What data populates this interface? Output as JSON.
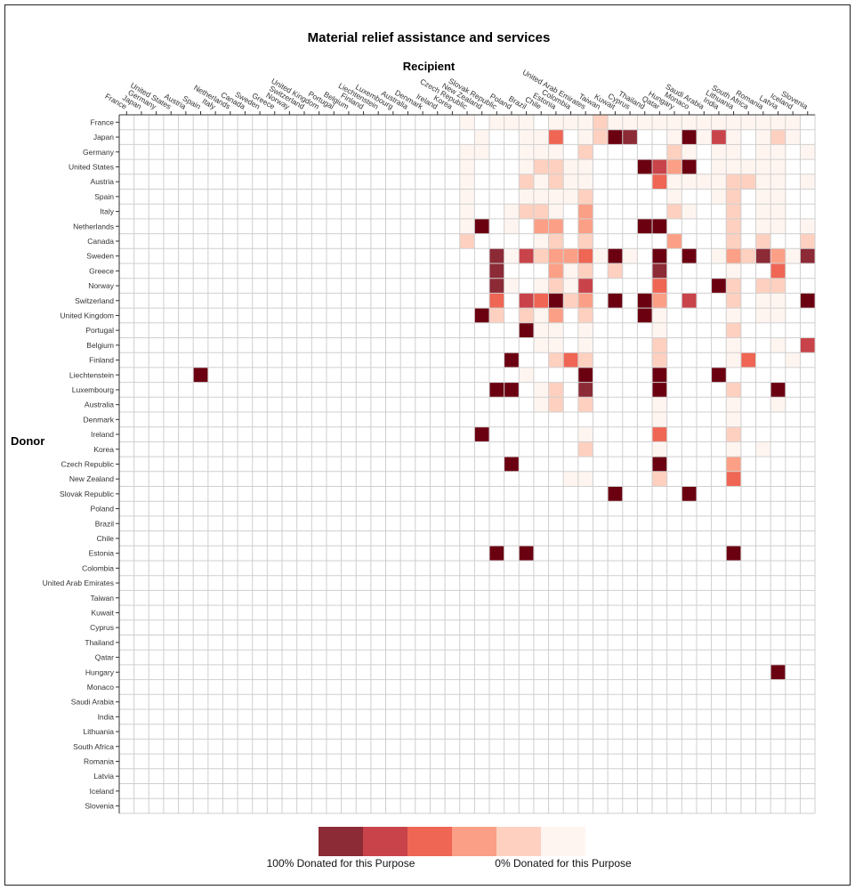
{
  "chart_data": {
    "type": "heatmap",
    "title": "Material relief assistance and services",
    "xlabel": "Recipient",
    "ylabel": "Donor",
    "x": [
      "France",
      "Japan",
      "Germany",
      "United States",
      "Austria",
      "Spain",
      "Italy",
      "Netherlands",
      "Canada",
      "Sweden",
      "Greece",
      "Norway",
      "Switzerland",
      "United Kingdom",
      "Portugal",
      "Belgium",
      "Finland",
      "Liechtenstein",
      "Luxembourg",
      "Australia",
      "Denmark",
      "Ireland",
      "Korea",
      "Czech Republic",
      "New Zealand",
      "Slovak Republic",
      "Poland",
      "Brazil",
      "Chile",
      "Estonia",
      "Colombia",
      "United Arab Emirates",
      "Taiwan",
      "Kuwait",
      "Cyprus",
      "Thailand",
      "Qatar",
      "Hungary",
      "Monaco",
      "Saudi Arabia",
      "India",
      "Lithuania",
      "South Africa",
      "Romania",
      "Latvia",
      "Iceland",
      "Slovenia"
    ],
    "y": [
      "France",
      "Japan",
      "Germany",
      "United States",
      "Austria",
      "Spain",
      "Italy",
      "Netherlands",
      "Canada",
      "Sweden",
      "Greece",
      "Norway",
      "Switzerland",
      "United Kingdom",
      "Portugal",
      "Belgium",
      "Finland",
      "Liechtenstein",
      "Luxembourg",
      "Australia",
      "Denmark",
      "Ireland",
      "Korea",
      "Czech Republic",
      "New Zealand",
      "Slovak Republic",
      "Poland",
      "Brazil",
      "Chile",
      "Estonia",
      "Colombia",
      "United Arab Emirates",
      "Taiwan",
      "Kuwait",
      "Cyprus",
      "Thailand",
      "Qatar",
      "Hungary",
      "Monaco",
      "Saudi Arabia",
      "India",
      "Lithuania",
      "South Africa",
      "Romania",
      "Latvia",
      "Iceland",
      "Slovenia"
    ],
    "cells": [
      [
        "France",
        "Czech Republic",
        0.05
      ],
      [
        "France",
        "Slovak Republic",
        0.05
      ],
      [
        "France",
        "Poland",
        0.05
      ],
      [
        "France",
        "Brazil",
        0.05
      ],
      [
        "France",
        "Estonia",
        0.05
      ],
      [
        "France",
        "Colombia",
        0.05
      ],
      [
        "France",
        "United Arab Emirates",
        0.05
      ],
      [
        "France",
        "Taiwan",
        0.3
      ],
      [
        "France",
        "Kuwait",
        0.05
      ],
      [
        "France",
        "Cyprus",
        0.05
      ],
      [
        "France",
        "Thailand",
        0.05
      ],
      [
        "France",
        "Qatar",
        0.1
      ],
      [
        "France",
        "Hungary",
        0.05
      ],
      [
        "France",
        "Monaco",
        0.05
      ],
      [
        "France",
        "Saudi Arabia",
        0.05
      ],
      [
        "France",
        "India",
        0.05
      ],
      [
        "France",
        "Lithuania",
        0.05
      ],
      [
        "France",
        "South Africa",
        0.05
      ],
      [
        "France",
        "Romania",
        0.05
      ],
      [
        "France",
        "Latvia",
        0.05
      ],
      [
        "France",
        "Iceland",
        0.05
      ],
      [
        "Japan",
        "New Zealand",
        0.05
      ],
      [
        "Japan",
        "Brazil",
        0.05
      ],
      [
        "Japan",
        "Chile",
        0.1
      ],
      [
        "Japan",
        "Estonia",
        0.6
      ],
      [
        "Japan",
        "United Arab Emirates",
        0.1
      ],
      [
        "Japan",
        "Taiwan",
        0.3
      ],
      [
        "Japan",
        "Kuwait",
        1.0
      ],
      [
        "Japan",
        "Cyprus",
        0.9
      ],
      [
        "Japan",
        "Hungary",
        0.1
      ],
      [
        "Japan",
        "Monaco",
        1.0
      ],
      [
        "Japan",
        "Saudi Arabia",
        0.05
      ],
      [
        "Japan",
        "India",
        0.8
      ],
      [
        "Japan",
        "Lithuania",
        0.1
      ],
      [
        "Japan",
        "Romania",
        0.1
      ],
      [
        "Japan",
        "Latvia",
        0.15
      ],
      [
        "Japan",
        "Iceland",
        0.05
      ],
      [
        "Germany",
        "New Zealand",
        0.05
      ],
      [
        "Germany",
        "Czech Republic",
        0.1
      ],
      [
        "Germany",
        "Brazil",
        0.1
      ],
      [
        "Germany",
        "Chile",
        0.1
      ],
      [
        "Germany",
        "Estonia",
        0.05
      ],
      [
        "Germany",
        "United Arab Emirates",
        0.15
      ],
      [
        "Germany",
        "Hungary",
        0.3
      ],
      [
        "Germany",
        "Monaco",
        0.05
      ],
      [
        "Germany",
        "India",
        0.05
      ],
      [
        "Germany",
        "Lithuania",
        0.05
      ],
      [
        "Germany",
        "Romania",
        0.1
      ],
      [
        "Germany",
        "Latvia",
        0.1
      ],
      [
        "Germany",
        "Slovenia",
        0.05
      ],
      [
        "United States",
        "Czech Republic",
        0.05
      ],
      [
        "United States",
        "Brazil",
        0.1
      ],
      [
        "United States",
        "Chile",
        0.2
      ],
      [
        "United States",
        "Estonia",
        0.15
      ],
      [
        "United States",
        "Colombia",
        0.05
      ],
      [
        "United States",
        "United Arab Emirates",
        0.05
      ],
      [
        "United States",
        "Thailand",
        1.0
      ],
      [
        "United States",
        "Qatar",
        0.8
      ],
      [
        "United States",
        "Hungary",
        0.45
      ],
      [
        "United States",
        "Monaco",
        1.0
      ],
      [
        "United States",
        "India",
        0.1
      ],
      [
        "United States",
        "Lithuania",
        0.05
      ],
      [
        "United States",
        "South Africa",
        0.05
      ],
      [
        "United States",
        "Romania",
        0.1
      ],
      [
        "United States",
        "Latvia",
        0.1
      ],
      [
        "Austria",
        "Czech Republic",
        0.05
      ],
      [
        "Austria",
        "Brazil",
        0.2
      ],
      [
        "Austria",
        "Chile",
        0.1
      ],
      [
        "Austria",
        "Estonia",
        0.15
      ],
      [
        "Austria",
        "Colombia",
        0.05
      ],
      [
        "Austria",
        "United Arab Emirates",
        0.1
      ],
      [
        "Austria",
        "Qatar",
        0.55
      ],
      [
        "Austria",
        "Hungary",
        0.1
      ],
      [
        "Austria",
        "Monaco",
        0.05
      ],
      [
        "Austria",
        "Saudi Arabia",
        0.05
      ],
      [
        "Austria",
        "India",
        0.1
      ],
      [
        "Austria",
        "Lithuania",
        0.2
      ],
      [
        "Austria",
        "South Africa",
        0.25
      ],
      [
        "Austria",
        "Romania",
        0.1
      ],
      [
        "Austria",
        "Latvia",
        0.1
      ],
      [
        "Austria",
        "Slovenia",
        0.05
      ],
      [
        "Spain",
        "Czech Republic",
        0.05
      ],
      [
        "Spain",
        "Brazil",
        0.1
      ],
      [
        "Spain",
        "Chile",
        0.1
      ],
      [
        "Spain",
        "Estonia",
        0.1
      ],
      [
        "Spain",
        "Colombia",
        0.05
      ],
      [
        "Spain",
        "United Arab Emirates",
        0.15
      ],
      [
        "Spain",
        "Hungary",
        0.05
      ],
      [
        "Spain",
        "India",
        0.05
      ],
      [
        "Spain",
        "Lithuania",
        0.2
      ],
      [
        "Spain",
        "Romania",
        0.1
      ],
      [
        "Spain",
        "Latvia",
        0.1
      ],
      [
        "Italy",
        "Czech Republic",
        0.05
      ],
      [
        "Italy",
        "Poland",
        0.05
      ],
      [
        "Italy",
        "Brazil",
        0.2
      ],
      [
        "Italy",
        "Chile",
        0.15
      ],
      [
        "Italy",
        "Estonia",
        0.1
      ],
      [
        "Italy",
        "United Arab Emirates",
        0.4
      ],
      [
        "Italy",
        "Hungary",
        0.2
      ],
      [
        "Italy",
        "Monaco",
        0.05
      ],
      [
        "Italy",
        "Lithuania",
        0.25
      ],
      [
        "Italy",
        "Romania",
        0.1
      ],
      [
        "Italy",
        "Latvia",
        0.1
      ],
      [
        "Netherlands",
        "New Zealand",
        1.0
      ],
      [
        "Netherlands",
        "Czech Republic",
        0.05
      ],
      [
        "Netherlands",
        "Poland",
        0.1
      ],
      [
        "Netherlands",
        "Chile",
        0.5
      ],
      [
        "Netherlands",
        "Estonia",
        0.5
      ],
      [
        "Netherlands",
        "United Arab Emirates",
        0.5
      ],
      [
        "Netherlands",
        "Thailand",
        1.0
      ],
      [
        "Netherlands",
        "Qatar",
        1.0
      ],
      [
        "Netherlands",
        "Lithuania",
        0.15
      ],
      [
        "Netherlands",
        "Romania",
        0.1
      ],
      [
        "Netherlands",
        "Latvia",
        0.1
      ],
      [
        "Netherlands",
        "Slovenia",
        0.1
      ],
      [
        "Canada",
        "Czech Republic",
        0.25
      ],
      [
        "Canada",
        "Chile",
        0.1
      ],
      [
        "Canada",
        "Estonia",
        0.2
      ],
      [
        "Canada",
        "United Arab Emirates",
        0.3
      ],
      [
        "Canada",
        "Hungary",
        0.45
      ],
      [
        "Canada",
        "Lithuania",
        0.15
      ],
      [
        "Canada",
        "Romania",
        0.2
      ],
      [
        "Canada",
        "Slovenia",
        0.15
      ],
      [
        "Sweden",
        "Slovak Republic",
        0.9
      ],
      [
        "Sweden",
        "Poland",
        0.05
      ],
      [
        "Sweden",
        "Brazil",
        0.8
      ],
      [
        "Sweden",
        "Chile",
        0.3
      ],
      [
        "Sweden",
        "Estonia",
        0.5
      ],
      [
        "Sweden",
        "Colombia",
        0.5
      ],
      [
        "Sweden",
        "United Arab Emirates",
        0.6
      ],
      [
        "Sweden",
        "Taiwan",
        0.1
      ],
      [
        "Sweden",
        "Kuwait",
        1.0
      ],
      [
        "Sweden",
        "Cyprus",
        0.05
      ],
      [
        "Sweden",
        "Qatar",
        1.0
      ],
      [
        "Sweden",
        "Monaco",
        1.0
      ],
      [
        "Sweden",
        "India",
        0.05
      ],
      [
        "Sweden",
        "Lithuania",
        0.4
      ],
      [
        "Sweden",
        "South Africa",
        0.2
      ],
      [
        "Sweden",
        "Romania",
        0.9
      ],
      [
        "Sweden",
        "Latvia",
        0.5
      ],
      [
        "Sweden",
        "Iceland",
        0.05
      ],
      [
        "Sweden",
        "Slovenia",
        0.9
      ],
      [
        "Greece",
        "Slovak Republic",
        0.9
      ],
      [
        "Greece",
        "Estonia",
        0.45
      ],
      [
        "Greece",
        "Colombia",
        0.05
      ],
      [
        "Greece",
        "United Arab Emirates",
        0.15
      ],
      [
        "Greece",
        "Kuwait",
        0.3
      ],
      [
        "Greece",
        "Qatar",
        0.9
      ],
      [
        "Greece",
        "Lithuania",
        0.1
      ],
      [
        "Greece",
        "Latvia",
        0.6
      ],
      [
        "Norway",
        "Slovak Republic",
        0.9
      ],
      [
        "Norway",
        "Poland",
        0.05
      ],
      [
        "Norway",
        "Chile",
        0.1
      ],
      [
        "Norway",
        "Estonia",
        0.2
      ],
      [
        "Norway",
        "Colombia",
        0.1
      ],
      [
        "Norway",
        "United Arab Emirates",
        0.8
      ],
      [
        "Norway",
        "Qatar",
        0.6
      ],
      [
        "Norway",
        "India",
        1.0
      ],
      [
        "Norway",
        "Lithuania",
        0.2
      ],
      [
        "Norway",
        "Romania",
        0.25
      ],
      [
        "Norway",
        "Latvia",
        0.15
      ],
      [
        "Switzerland",
        "Slovak Republic",
        0.6
      ],
      [
        "Switzerland",
        "Brazil",
        0.8
      ],
      [
        "Switzerland",
        "Chile",
        0.6
      ],
      [
        "Switzerland",
        "Estonia",
        1.0
      ],
      [
        "Switzerland",
        "Colombia",
        0.2
      ],
      [
        "Switzerland",
        "United Arab Emirates",
        0.4
      ],
      [
        "Switzerland",
        "Kuwait",
        1.0
      ],
      [
        "Switzerland",
        "Thailand",
        1.0
      ],
      [
        "Switzerland",
        "Qatar",
        0.5
      ],
      [
        "Switzerland",
        "Monaco",
        0.8
      ],
      [
        "Switzerland",
        "Lithuania",
        0.2
      ],
      [
        "Switzerland",
        "Romania",
        0.1
      ],
      [
        "Switzerland",
        "Latvia",
        0.1
      ],
      [
        "Switzerland",
        "Slovenia",
        1.0
      ],
      [
        "United Kingdom",
        "New Zealand",
        1.0
      ],
      [
        "United Kingdom",
        "Slovak Republic",
        0.3
      ],
      [
        "United Kingdom",
        "Brazil",
        0.15
      ],
      [
        "United Kingdom",
        "Chile",
        0.1
      ],
      [
        "United Kingdom",
        "Estonia",
        0.5
      ],
      [
        "United Kingdom",
        "United Arab Emirates",
        0.3
      ],
      [
        "United Kingdom",
        "Thailand",
        1.0
      ],
      [
        "United Kingdom",
        "Qatar",
        0.1
      ],
      [
        "United Kingdom",
        "Lithuania",
        0.1
      ],
      [
        "United Kingdom",
        "Romania",
        0.1
      ],
      [
        "United Kingdom",
        "Latvia",
        0.1
      ],
      [
        "Portugal",
        "Brazil",
        1.0
      ],
      [
        "Portugal",
        "Chile",
        0.05
      ],
      [
        "Portugal",
        "Estonia",
        0.1
      ],
      [
        "Portugal",
        "United Arab Emirates",
        0.1
      ],
      [
        "Portugal",
        "Qatar",
        0.1
      ],
      [
        "Portugal",
        "Lithuania",
        0.25
      ],
      [
        "Belgium",
        "Chile",
        0.05
      ],
      [
        "Belgium",
        "Estonia",
        0.05
      ],
      [
        "Belgium",
        "United Arab Emirates",
        0.1
      ],
      [
        "Belgium",
        "Qatar",
        0.2
      ],
      [
        "Belgium",
        "Lithuania",
        0.05
      ],
      [
        "Belgium",
        "Latvia",
        0.05
      ],
      [
        "Belgium",
        "Slovenia",
        0.85
      ],
      [
        "Finland",
        "Poland",
        1.0
      ],
      [
        "Finland",
        "Estonia",
        0.3
      ],
      [
        "Finland",
        "Colombia",
        0.6
      ],
      [
        "Finland",
        "United Arab Emirates",
        0.2
      ],
      [
        "Finland",
        "Qatar",
        0.2
      ],
      [
        "Finland",
        "Lithuania",
        0.1
      ],
      [
        "Finland",
        "South Africa",
        0.55
      ],
      [
        "Finland",
        "Iceland",
        0.05
      ],
      [
        "Liechtenstein",
        "Spain",
        1.0
      ],
      [
        "Liechtenstein",
        "Brazil",
        0.05
      ],
      [
        "Liechtenstein",
        "United Arab Emirates",
        1.0
      ],
      [
        "Liechtenstein",
        "Qatar",
        1.0
      ],
      [
        "Liechtenstein",
        "India",
        1.0
      ],
      [
        "Luxembourg",
        "Slovak Republic",
        1.0
      ],
      [
        "Luxembourg",
        "Poland",
        1.0
      ],
      [
        "Luxembourg",
        "Chile",
        0.1
      ],
      [
        "Luxembourg",
        "Estonia",
        0.3
      ],
      [
        "Luxembourg",
        "United Arab Emirates",
        0.9
      ],
      [
        "Luxembourg",
        "Qatar",
        1.0
      ],
      [
        "Luxembourg",
        "Lithuania",
        0.25
      ],
      [
        "Luxembourg",
        "Latvia",
        1.0
      ],
      [
        "Australia",
        "Chile",
        0.1
      ],
      [
        "Australia",
        "Estonia",
        0.3
      ],
      [
        "Australia",
        "United Arab Emirates",
        0.2
      ],
      [
        "Australia",
        "Qatar",
        0.05
      ],
      [
        "Australia",
        "Lithuania",
        0.05
      ],
      [
        "Australia",
        "Latvia",
        0.05
      ],
      [
        "Denmark",
        "Qatar",
        0.05
      ],
      [
        "Denmark",
        "Lithuania",
        0.05
      ],
      [
        "Ireland",
        "New Zealand",
        1.0
      ],
      [
        "Ireland",
        "United Arab Emirates",
        0.05
      ],
      [
        "Ireland",
        "Qatar",
        0.6
      ],
      [
        "Ireland",
        "Lithuania",
        0.2
      ],
      [
        "Korea",
        "United Arab Emirates",
        0.15
      ],
      [
        "Korea",
        "Qatar",
        0.1
      ],
      [
        "Korea",
        "Lithuania",
        0.05
      ],
      [
        "Korea",
        "Romania",
        0.05
      ],
      [
        "Czech Republic",
        "Poland",
        1.0
      ],
      [
        "Czech Republic",
        "Qatar",
        1.0
      ],
      [
        "Czech Republic",
        "Lithuania",
        0.35
      ],
      [
        "New Zealand",
        "Colombia",
        0.1
      ],
      [
        "New Zealand",
        "United Arab Emirates",
        0.1
      ],
      [
        "New Zealand",
        "Qatar",
        0.2
      ],
      [
        "New Zealand",
        "Lithuania",
        0.6
      ],
      [
        "Slovak Republic",
        "Kuwait",
        1.0
      ],
      [
        "Slovak Republic",
        "Monaco",
        1.0
      ],
      [
        "Estonia",
        "Slovak Republic",
        1.0
      ],
      [
        "Estonia",
        "Brazil",
        1.0
      ],
      [
        "Estonia",
        "Lithuania",
        1.0
      ],
      [
        "Hungary",
        "Latvia",
        1.0
      ]
    ],
    "color_scale": [
      "#8c2a36",
      "#c9434a",
      "#ef6655",
      "#fba086",
      "#fdd0c0",
      "#fff5f0"
    ],
    "empty_color": "#ffffff",
    "legend": {
      "left_label": "100% Donated for this Purpose",
      "right_label": "0% Donated for this Purpose"
    }
  }
}
